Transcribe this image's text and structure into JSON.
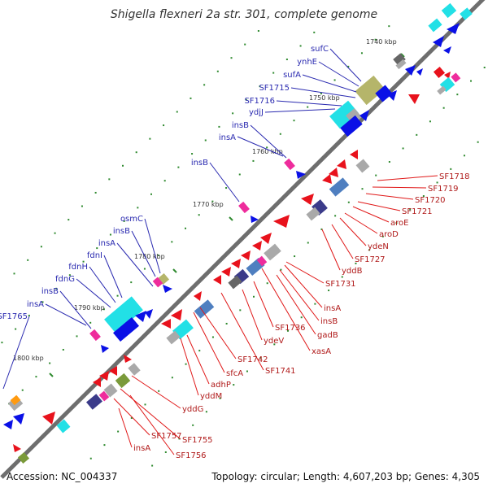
{
  "title": "Shigella flexneri 2a str. 301, complete genome",
  "footer": {
    "accession": "Accession: NC_004337",
    "summary": "Topology: circular; Length: 4,607,203 bp; Genes: 4,305"
  },
  "colors": {
    "blue": "#0a10e6",
    "red": "#e8121c",
    "cyan": "#22e0e6",
    "gray": "#a9a9a9",
    "darkgray": "#666666",
    "olive": "#b5b56a",
    "pink": "#ee2c9c",
    "navy": "#3b3b8a",
    "steel": "#4f7fc0",
    "green": "#7a9a3a",
    "orange": "#ff9a10",
    "label_blue": "#2a2ab0",
    "label_red": "#e01818"
  },
  "ticks": [
    {
      "label": "1740 kbp"
    },
    {
      "label": "1750 kbp"
    },
    {
      "label": "1760 kbp"
    },
    {
      "label": "1770 kbp"
    },
    {
      "label": "1780 kbp"
    },
    {
      "label": "1790 kbp"
    },
    {
      "label": "1800 kbp"
    }
  ],
  "labels_blue": [
    "sufC",
    "ynhE",
    "sufA",
    "SF1715",
    "SF1716",
    "ydjJ",
    "insB",
    "insA",
    "insB",
    "osmC",
    "insB",
    "insA",
    "fdnI",
    "fdnH",
    "fdnG",
    "insB",
    "insA",
    "SF1765"
  ],
  "labels_red": [
    "SF1718",
    "SF1719",
    "SF1720",
    "SF1721",
    "aroE",
    "aroD",
    "ydeN",
    "SF1727",
    "yddB",
    "SF1731",
    "insA",
    "insB",
    "gadB",
    "xasA",
    "SF1736",
    "ydeV",
    "SF1741",
    "SF1742",
    "sfcA",
    "adhP",
    "yddM",
    "yddG",
    "SF1755",
    "SF1756",
    "SF1757",
    "insA"
  ]
}
